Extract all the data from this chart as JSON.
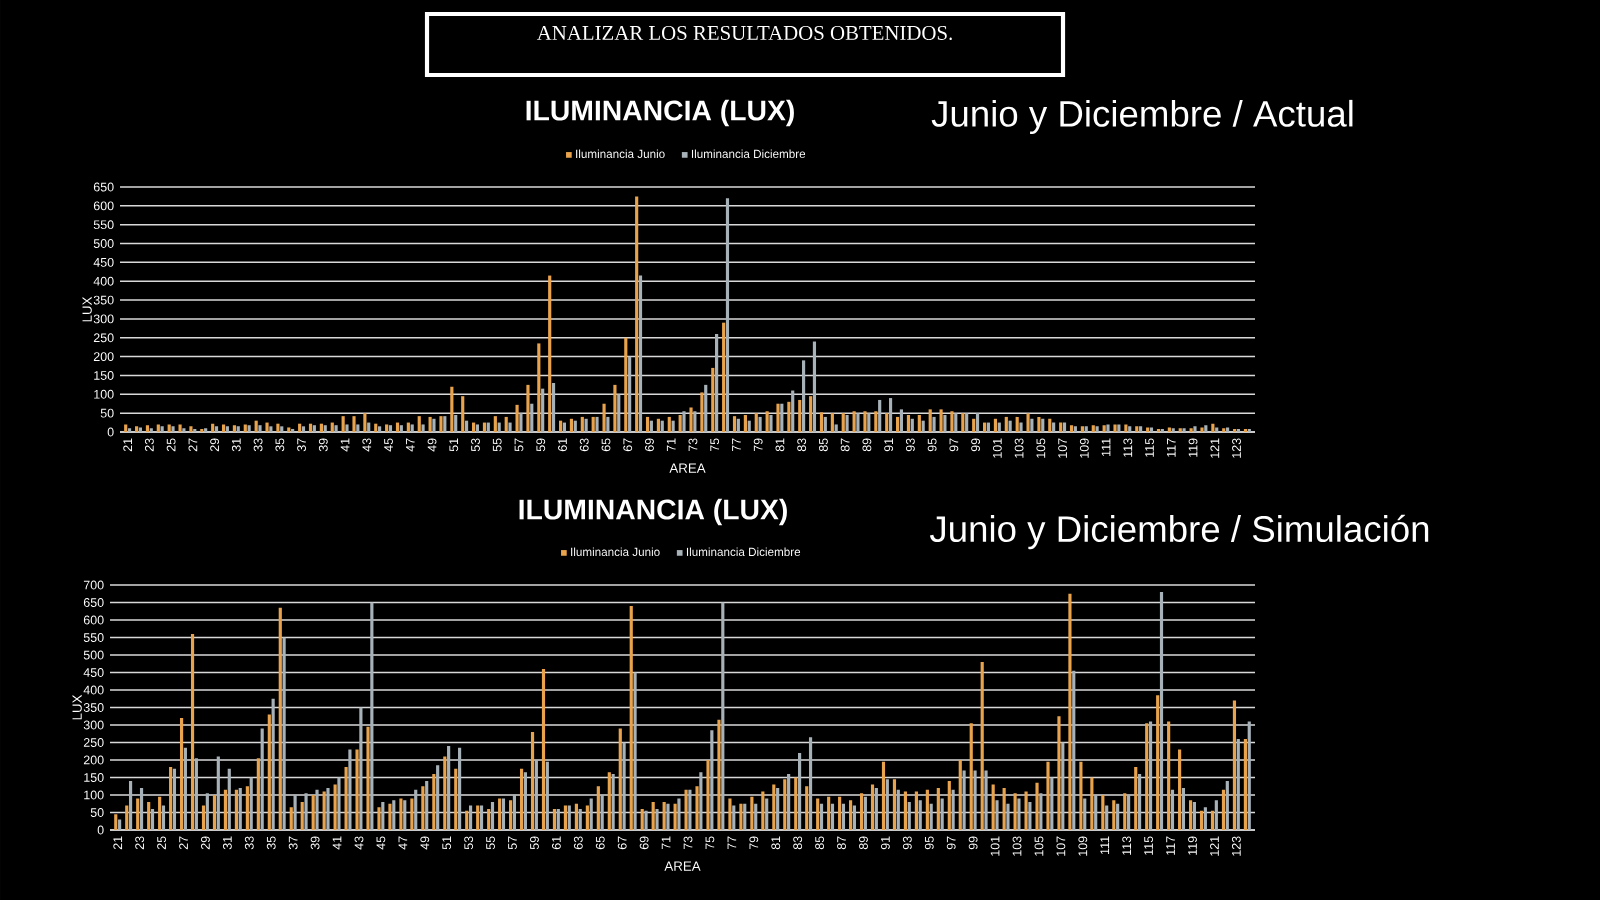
{
  "chart_data": [
    {
      "type": "bar",
      "title": "ILUMINANCIA (LUX)",
      "subtitle": "Junio y Diciembre / Actual",
      "xlabel": "AREA",
      "ylabel": "LUX",
      "annotations": [
        "ANALIZAR LOS RESULTADOS OBTENIDOS."
      ],
      "categories": [
        "21",
        null,
        "23",
        null,
        "25",
        null,
        "27",
        null,
        "29",
        null,
        "31",
        null,
        "33",
        null,
        "35",
        null,
        "37",
        null,
        "39",
        null,
        "41",
        null,
        "43",
        null,
        "45",
        null,
        "47",
        null,
        "49",
        null,
        "51",
        null,
        "53",
        null,
        "55",
        null,
        "57",
        null,
        "59",
        null,
        "61",
        null,
        "63",
        null,
        "65",
        null,
        "67",
        null,
        "69",
        null,
        "71",
        null,
        "73",
        null,
        "75",
        null,
        "77",
        null,
        "79",
        null,
        "81",
        null,
        "83",
        null,
        "85",
        null,
        "87",
        null,
        "89",
        null,
        "91",
        null,
        "93",
        null,
        "95",
        null,
        "97",
        null,
        "99",
        null,
        "101",
        null,
        "103",
        null,
        "105",
        null,
        "107",
        null,
        "109",
        null,
        "111",
        null,
        "113",
        null,
        "115",
        null,
        "117",
        null,
        "119",
        null,
        "121",
        null,
        "123",
        null
      ],
      "series": [
        {
          "name": "Iluminancia Junio",
          "color": "#e8a34c",
          "values": [
            20,
            15,
            18,
            20,
            20,
            20,
            15,
            8,
            22,
            20,
            18,
            20,
            30,
            25,
            22,
            12,
            22,
            22,
            22,
            25,
            42,
            42,
            50,
            22,
            20,
            25,
            25,
            42,
            40,
            42,
            120,
            95,
            25,
            25,
            42,
            40,
            72,
            125,
            235,
            415,
            30,
            35,
            40,
            40,
            75,
            125,
            250,
            625,
            40,
            35,
            40,
            45,
            65,
            105,
            170,
            290,
            42,
            45,
            50,
            55,
            75,
            80,
            85,
            95,
            52,
            50,
            50,
            55,
            55,
            55,
            50,
            40,
            45,
            45,
            60,
            60,
            55,
            50,
            35,
            25,
            35,
            40,
            40,
            50,
            40,
            35,
            25,
            18,
            15,
            18,
            18,
            20,
            20,
            15,
            12,
            8,
            12,
            10,
            10,
            12,
            22,
            10,
            8,
            8
          ]
        },
        {
          "name": "Iluminancia Diciembre",
          "color": "#a7b1b8",
          "values": [
            10,
            12,
            10,
            15,
            15,
            10,
            8,
            10,
            15,
            15,
            15,
            18,
            18,
            15,
            15,
            8,
            15,
            18,
            18,
            18,
            20,
            20,
            25,
            15,
            18,
            18,
            20,
            20,
            35,
            42,
            45,
            30,
            20,
            25,
            25,
            25,
            50,
            75,
            115,
            130,
            25,
            30,
            35,
            40,
            40,
            100,
            200,
            415,
            30,
            30,
            30,
            55,
            55,
            125,
            260,
            620,
            35,
            30,
            40,
            45,
            75,
            110,
            190,
            240,
            40,
            20,
            45,
            50,
            50,
            85,
            90,
            60,
            35,
            30,
            40,
            45,
            50,
            50,
            50,
            25,
            25,
            30,
            25,
            35,
            35,
            25,
            25,
            15,
            15,
            15,
            20,
            20,
            15,
            15,
            12,
            8,
            10,
            10,
            15,
            18,
            12,
            12,
            8,
            8
          ]
        }
      ],
      "ylim": [
        0,
        650
      ],
      "yticks": [
        0,
        50,
        100,
        150,
        200,
        250,
        300,
        350,
        400,
        450,
        500,
        550,
        600,
        650
      ],
      "grid": "y",
      "legend": "top"
    },
    {
      "type": "bar",
      "title": "ILUMINANCIA (LUX)",
      "subtitle": "Junio y Diciembre / Simulación",
      "xlabel": "AREA",
      "ylabel": "LUX",
      "categories": [
        "21",
        null,
        "23",
        null,
        "25",
        null,
        "27",
        null,
        "29",
        null,
        "31",
        null,
        "33",
        null,
        "35",
        null,
        "37",
        null,
        "39",
        null,
        "41",
        null,
        "43",
        null,
        "45",
        null,
        "47",
        null,
        "49",
        null,
        "51",
        null,
        "53",
        null,
        "55",
        null,
        "57",
        null,
        "59",
        null,
        "61",
        null,
        "63",
        null,
        "65",
        null,
        "67",
        null,
        "69",
        null,
        "71",
        null,
        "73",
        null,
        "75",
        null,
        "77",
        null,
        "79",
        null,
        "81",
        null,
        "83",
        null,
        "85",
        null,
        "87",
        null,
        "89",
        null,
        "91",
        null,
        "93",
        null,
        "95",
        null,
        "97",
        null,
        "99",
        null,
        "101",
        null,
        "103",
        null,
        "105",
        null,
        "107",
        null,
        "109",
        null,
        "111",
        null,
        "113",
        null,
        "115",
        null,
        "117",
        null,
        "119",
        null,
        "121",
        null,
        "123",
        null
      ],
      "series": [
        {
          "name": "Iluminancia Junio",
          "color": "#e8a34c",
          "values": [
            45,
            70,
            90,
            80,
            95,
            180,
            320,
            560,
            70,
            100,
            115,
            115,
            125,
            205,
            330,
            635,
            65,
            80,
            100,
            110,
            130,
            180,
            230,
            295,
            65,
            75,
            90,
            90,
            125,
            160,
            210,
            175,
            55,
            70,
            60,
            90,
            85,
            175,
            280,
            460,
            60,
            70,
            75,
            70,
            125,
            165,
            290,
            640,
            60,
            80,
            80,
            75,
            115,
            125,
            200,
            315,
            90,
            75,
            95,
            110,
            130,
            145,
            150,
            125,
            90,
            95,
            95,
            85,
            105,
            130,
            195,
            145,
            110,
            110,
            115,
            120,
            140,
            200,
            305,
            480,
            130,
            120,
            105,
            110,
            135,
            195,
            325,
            675,
            195,
            150,
            100,
            85,
            105,
            180,
            305,
            385,
            310,
            230,
            85,
            55,
            55,
            115,
            370,
            260
          ]
        },
        {
          "name": "Iluminancia Diciembre",
          "color": "#a7b1b8",
          "values": [
            30,
            140,
            120,
            60,
            70,
            175,
            235,
            205,
            105,
            210,
            175,
            120,
            150,
            290,
            375,
            550,
            100,
            105,
            115,
            120,
            150,
            230,
            350,
            650,
            80,
            85,
            85,
            115,
            140,
            185,
            240,
            235,
            70,
            70,
            80,
            90,
            100,
            165,
            200,
            195,
            60,
            70,
            60,
            90,
            100,
            160,
            250,
            450,
            55,
            60,
            75,
            90,
            115,
            165,
            285,
            650,
            70,
            75,
            75,
            90,
            120,
            160,
            220,
            265,
            75,
            75,
            75,
            70,
            95,
            120,
            145,
            115,
            80,
            85,
            75,
            90,
            115,
            170,
            170,
            170,
            85,
            75,
            90,
            80,
            105,
            150,
            250,
            455,
            90,
            100,
            70,
            75,
            100,
            160,
            310,
            680,
            115,
            120,
            80,
            65,
            85,
            140,
            260,
            310
          ]
        }
      ],
      "ylim": [
        0,
        700
      ],
      "yticks": [
        0,
        50,
        100,
        150,
        200,
        250,
        300,
        350,
        400,
        450,
        500,
        550,
        600,
        650,
        700
      ],
      "grid": "y",
      "legend": "top"
    }
  ]
}
